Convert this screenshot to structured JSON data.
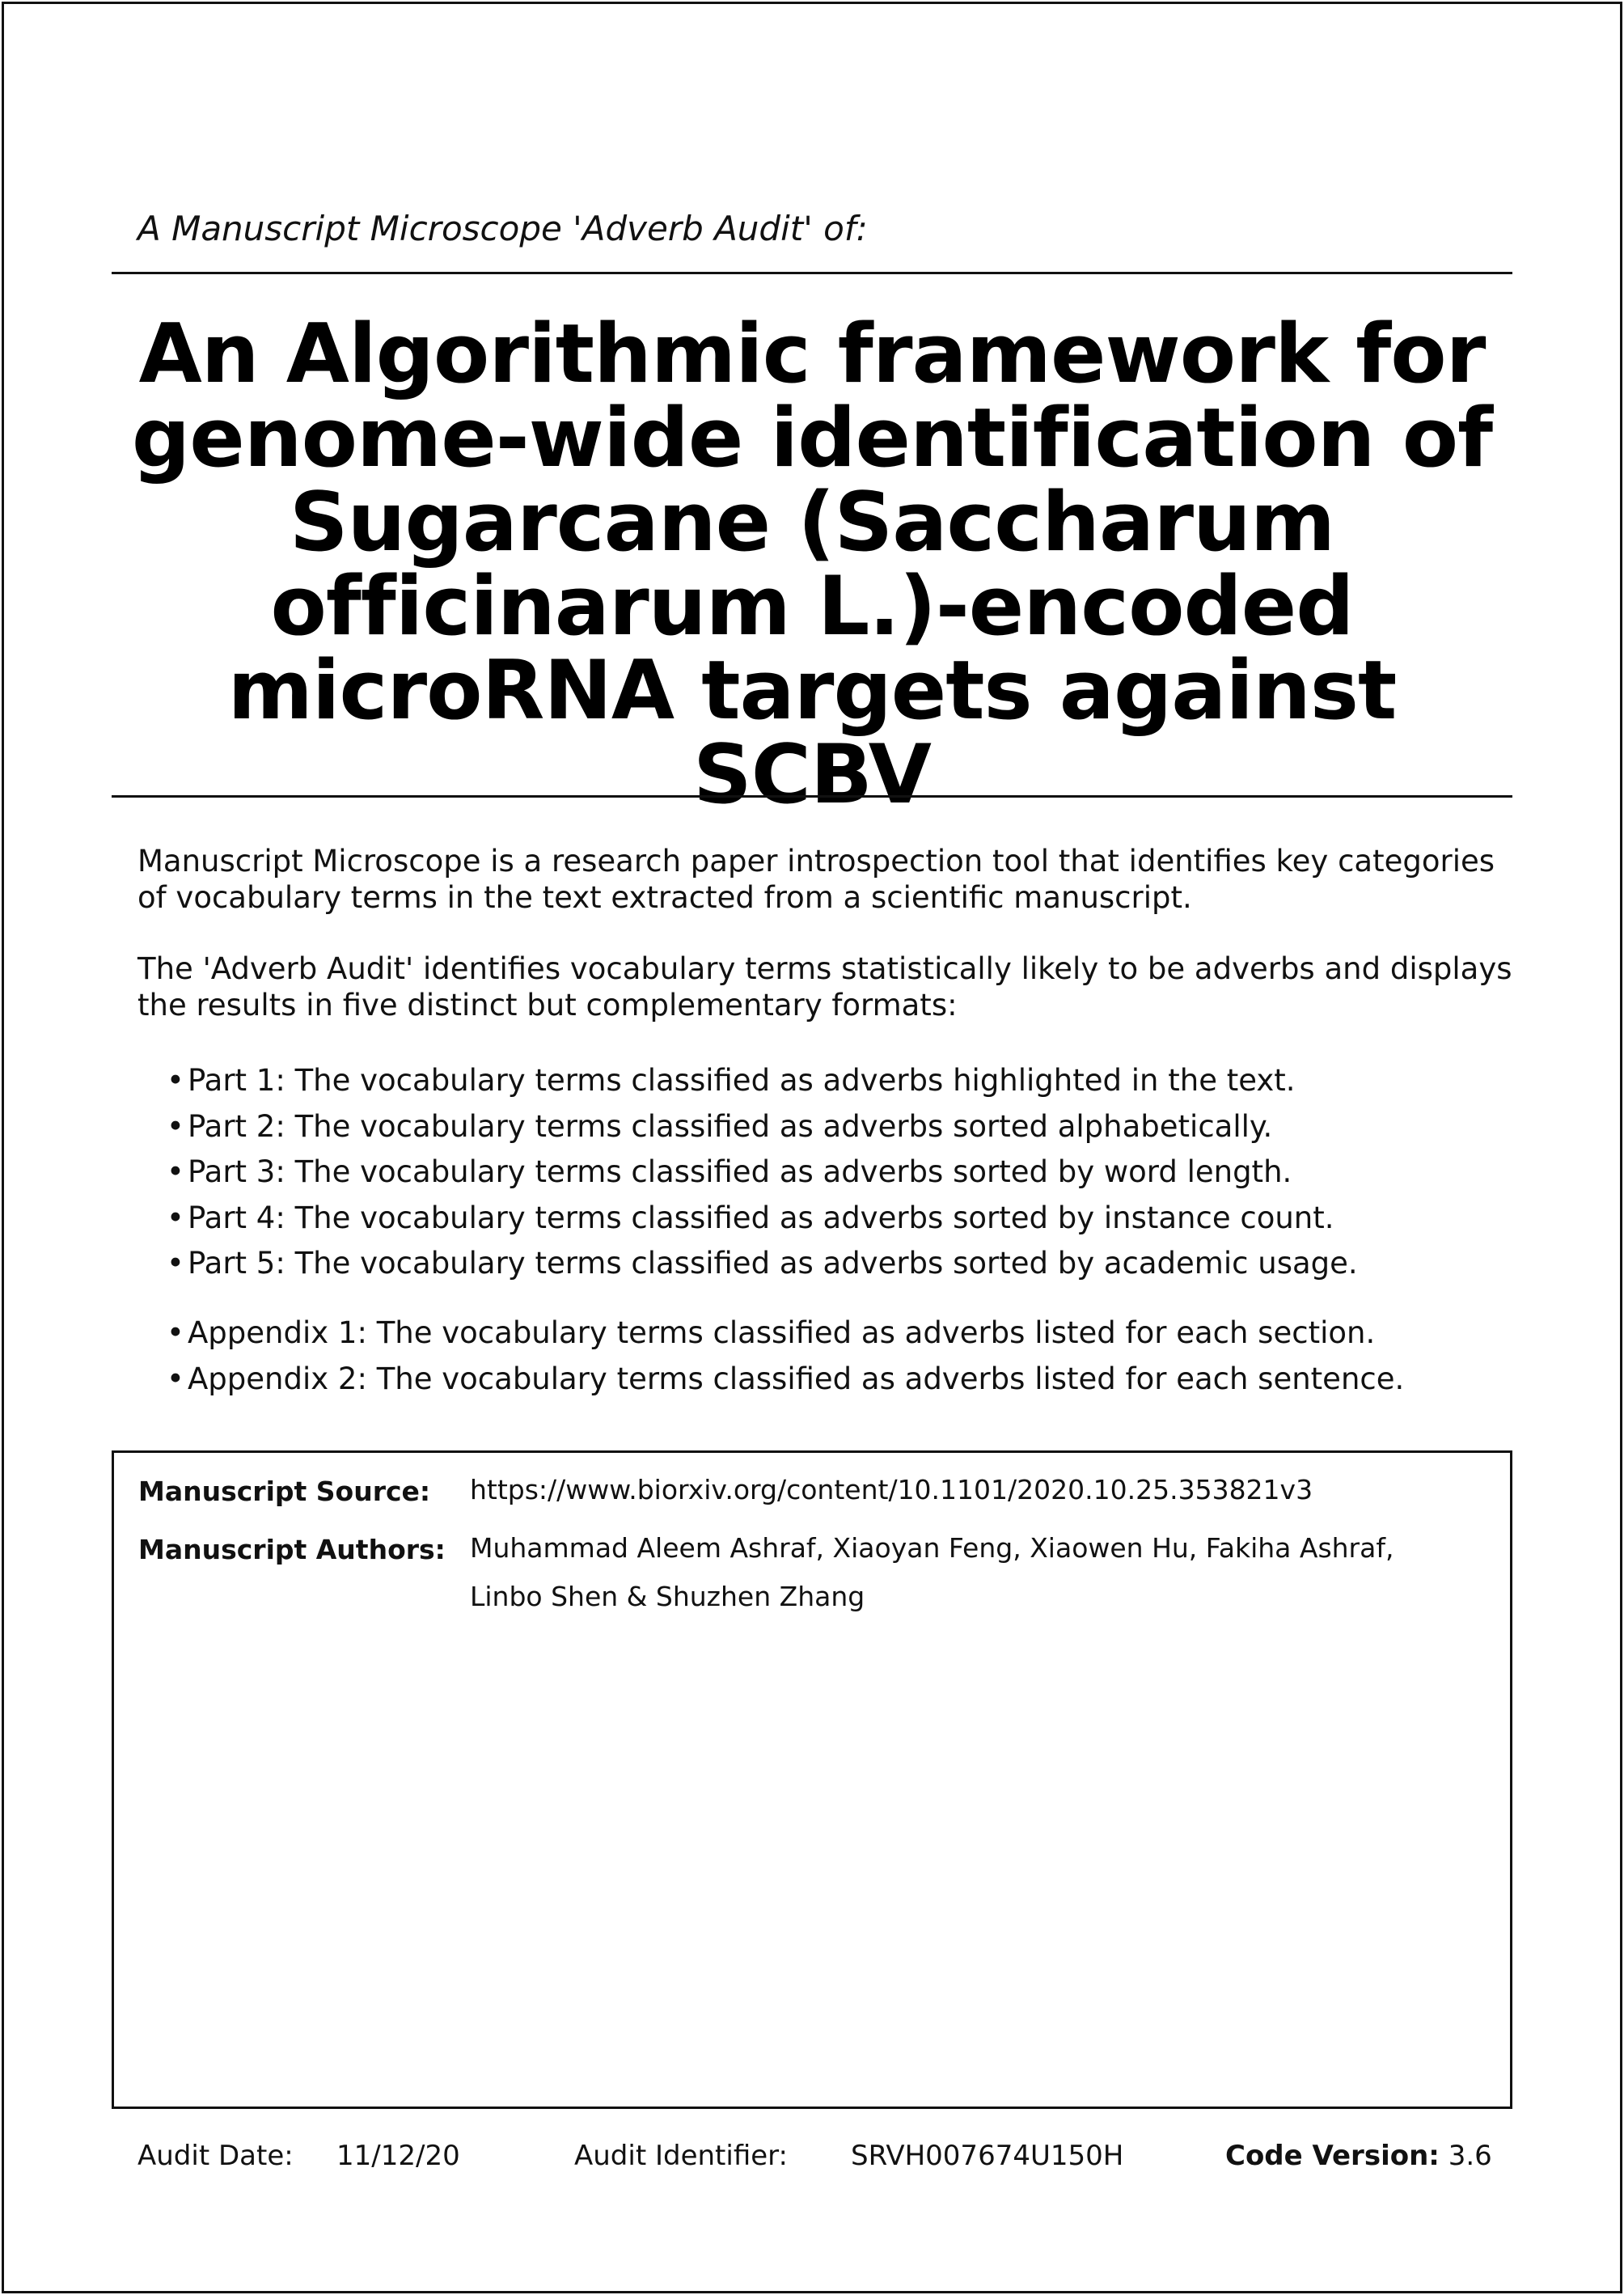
{
  "preface": "A Manuscript Microscope 'Adverb Audit' of:",
  "title_lines": [
    "An Algorithmic framework for",
    "genome-wide identification of",
    "Sugarcane (Saccharum",
    "officinarum L.)-encoded",
    "microRNA targets against SCBV"
  ],
  "intro": [
    "Manuscript Microscope is a research paper introspection tool that identifies key categories of vocabulary terms in the text extracted from a scientific manuscript.",
    "The 'Adverb Audit' identifies vocabulary terms statistically likely to be adverbs and displays the results in five distinct but complementary formats:"
  ],
  "bullet_symbol": "•",
  "parts": [
    "Part 1: The vocabulary terms classified as adverbs highlighted in the text.",
    "Part 2: The vocabulary terms classified as adverbs sorted alphabetically.",
    "Part 3: The vocabulary terms classified as adverbs sorted by word length.",
    "Part 4: The vocabulary terms classified as adverbs sorted by instance count.",
    "Part 5: The vocabulary terms classified as adverbs sorted by academic usage."
  ],
  "appendices": [
    "Appendix 1: The vocabulary terms classified as adverbs listed for each section.",
    "Appendix 2: The vocabulary terms classified as adverbs listed for each sentence."
  ],
  "info": {
    "source_label": "Manuscript Source:",
    "source_value": "https://www.biorxiv.org/content/10.1101/2020.10.25.353821v3",
    "authors_label": "Manuscript Authors:",
    "authors_value": "Muhammad Aleem Ashraf, Xiaoyan Feng, Xiaowen Hu, Fakiha Ashraf, Linbo Shen & Shuzhen Zhang"
  },
  "footer": {
    "date_label": "Audit Date:",
    "date_value": "11/12/20",
    "id_label": "Audit Identifier:",
    "id_value": "SRVH007674U150H",
    "code_label": "Code Version:",
    "code_value": "3.6"
  }
}
